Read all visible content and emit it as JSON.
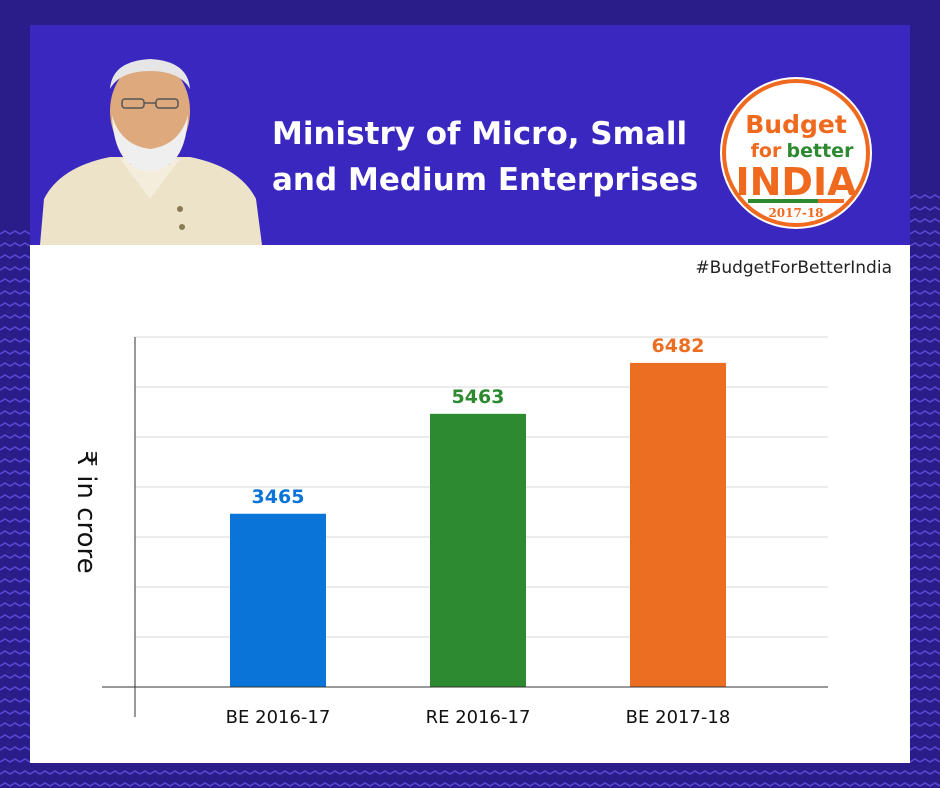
{
  "header": {
    "title_line1": "Ministry of Micro, Small",
    "title_line2": "and Medium Enterprises",
    "logo_line1": "Budget",
    "logo_for": "for",
    "logo_better": "better",
    "logo_india": "INDIA",
    "logo_year": "2017-18"
  },
  "hashtag": "#BudgetForBetterIndia",
  "chart_data": {
    "type": "bar",
    "categories": [
      "BE 2016-17",
      "RE 2016-17",
      "BE 2017-18"
    ],
    "values": [
      3465,
      5463,
      6482
    ],
    "data_labels": [
      "3465",
      "5463",
      "6482"
    ],
    "ylabel": "₹ in crore",
    "ylim": [
      0,
      7000
    ],
    "grid": true,
    "colors": [
      "#0a74d8",
      "#2e8a31",
      "#ec6e22"
    ]
  }
}
